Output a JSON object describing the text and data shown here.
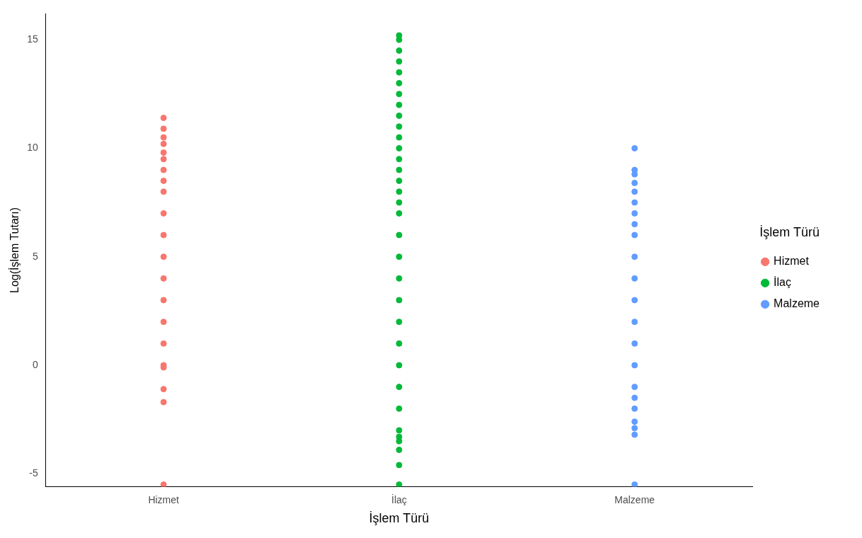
{
  "chart_data": {
    "type": "scatter",
    "xlabel": "İşlem Türü",
    "ylabel": "Log(İşlem Tutarı)",
    "legend_title": "İşlem Türü",
    "categories": [
      "Hizmet",
      "İlaç",
      "Malzeme"
    ],
    "ylim": [
      -5.6,
      16.2
    ],
    "yticks": [
      -5,
      0,
      5,
      10,
      15
    ],
    "grid": false,
    "legend": "right",
    "marker": "circle",
    "series": [
      {
        "name": "Hizmet",
        "color": "#f8766d",
        "x": [
          "Hizmet",
          "Hizmet",
          "Hizmet",
          "Hizmet",
          "Hizmet",
          "Hizmet",
          "Hizmet",
          "Hizmet",
          "Hizmet",
          "Hizmet",
          "Hizmet",
          "Hizmet",
          "Hizmet",
          "Hizmet",
          "Hizmet",
          "Hizmet",
          "Hizmet",
          "Hizmet",
          "Hizmet",
          "Hizmet",
          "Hizmet"
        ],
        "values": [
          11.4,
          10.9,
          10.5,
          10.2,
          9.8,
          9.5,
          9,
          8.5,
          8,
          7,
          6,
          5,
          4,
          3,
          2,
          1,
          0,
          -0.1,
          -1.1,
          -1.7,
          -5.5
        ]
      },
      {
        "name": "İlaç",
        "color": "#00ba38",
        "x": [
          "İlaç",
          "İlaç",
          "İlaç",
          "İlaç",
          "İlaç",
          "İlaç",
          "İlaç",
          "İlaç",
          "İlaç",
          "İlaç",
          "İlaç",
          "İlaç",
          "İlaç",
          "İlaç",
          "İlaç",
          "İlaç",
          "İlaç",
          "İlaç",
          "İlaç",
          "İlaç",
          "İlaç",
          "İlaç",
          "İlaç",
          "İlaç",
          "İlaç",
          "İlaç",
          "İlaç",
          "İlaç",
          "İlaç",
          "İlaç",
          "İlaç",
          "İlaç",
          "İlaç"
        ],
        "values": [
          15.2,
          15,
          14.5,
          14,
          13.5,
          13,
          12.5,
          12,
          11.5,
          11,
          10.5,
          10,
          9.5,
          9,
          8.5,
          8,
          7.5,
          7,
          6,
          5,
          4,
          3,
          2,
          1,
          0,
          -1,
          -2,
          -3,
          -3.3,
          -3.5,
          -3.9,
          -4.6,
          -5.5
        ]
      },
      {
        "name": "Malzeme",
        "color": "#619cff",
        "x": [
          "Malzeme",
          "Malzeme",
          "Malzeme",
          "Malzeme",
          "Malzeme",
          "Malzeme",
          "Malzeme",
          "Malzeme",
          "Malzeme",
          "Malzeme",
          "Malzeme",
          "Malzeme",
          "Malzeme",
          "Malzeme",
          "Malzeme",
          "Malzeme",
          "Malzeme",
          "Malzeme",
          "Malzeme",
          "Malzeme",
          "Malzeme",
          "Malzeme"
        ],
        "values": [
          10,
          9,
          8.8,
          8.4,
          8,
          7.5,
          7,
          6.5,
          6,
          5,
          4,
          3,
          2,
          1,
          0,
          -1,
          -1.5,
          -2,
          -2.6,
          -2.9,
          -3.2,
          -5.5
        ]
      }
    ]
  }
}
